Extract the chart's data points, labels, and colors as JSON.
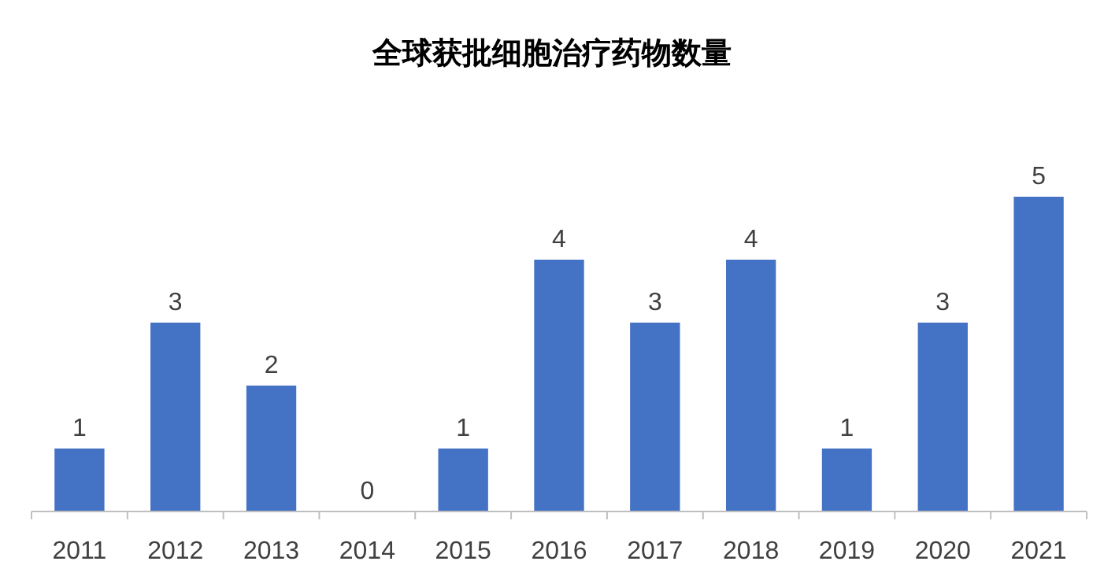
{
  "chart_data": {
    "type": "bar",
    "title": "全球获批细胞治疗药物数量",
    "categories": [
      "2011",
      "2012",
      "2013",
      "2014",
      "2015",
      "2016",
      "2017",
      "2018",
      "2019",
      "2020",
      "2021"
    ],
    "values": [
      1,
      3,
      2,
      0,
      1,
      4,
      3,
      4,
      1,
      3,
      5
    ],
    "color": "#4472c4",
    "data_labels": true
  }
}
